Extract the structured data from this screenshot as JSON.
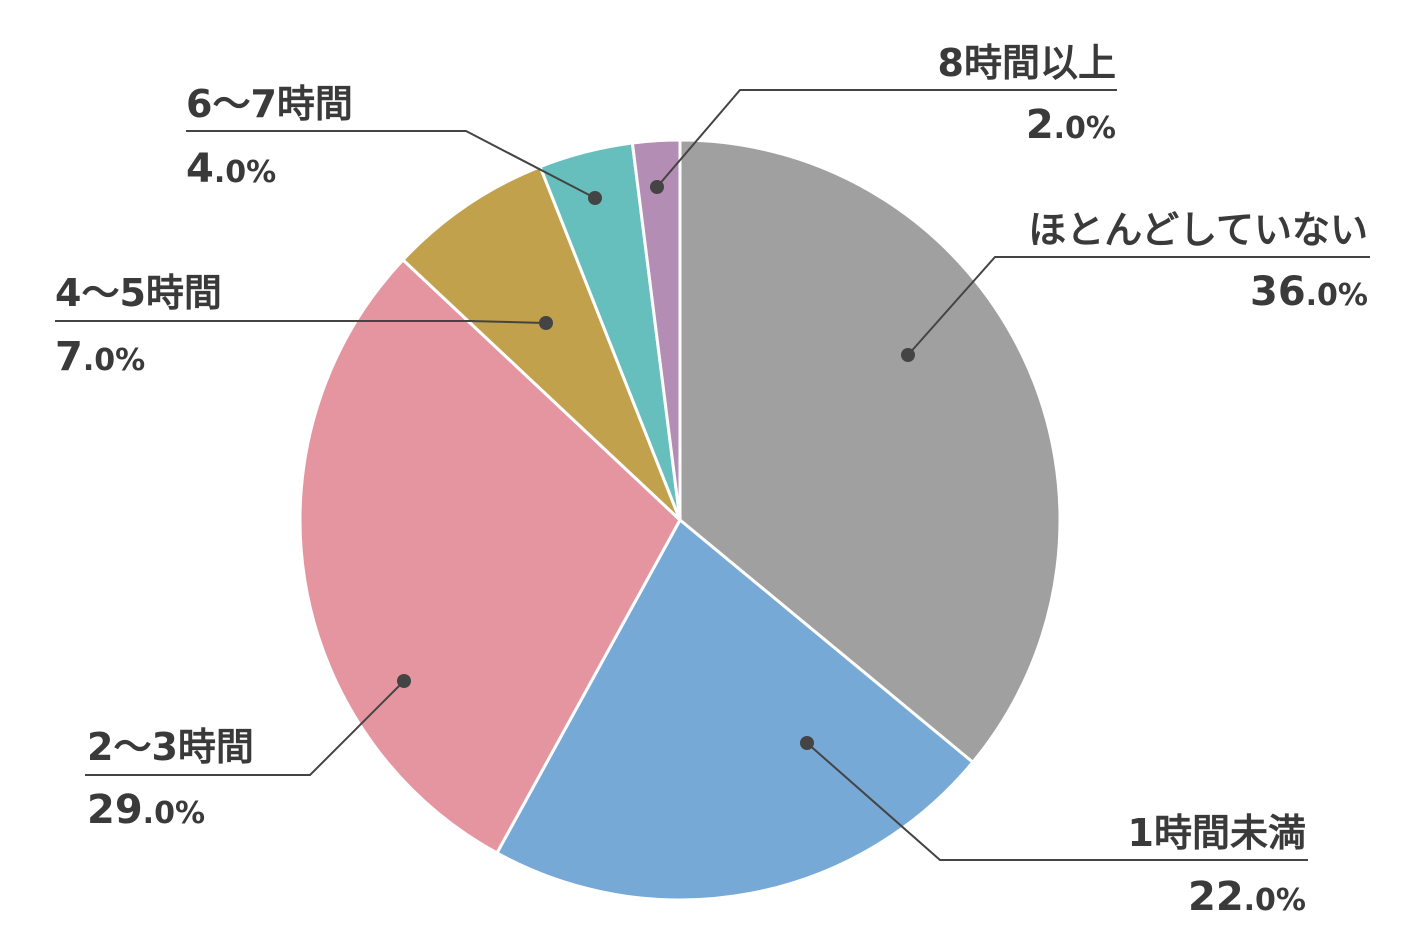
{
  "chart_data": {
    "type": "pie",
    "title": "",
    "unit": "%",
    "slices": [
      {
        "label": "ほとんどしていない",
        "value": 36.0,
        "int_text": "36",
        "dec_text": ".0%",
        "color": "#a0a0a0"
      },
      {
        "label": "1時間未満",
        "value": 22.0,
        "int_text": "22",
        "dec_text": ".0%",
        "color": "#76a9d6"
      },
      {
        "label": "2〜3時間",
        "value": 29.0,
        "int_text": "29",
        "dec_text": ".0%",
        "color": "#e5959f"
      },
      {
        "label": "4〜5時間",
        "value": 7.0,
        "int_text": "7",
        "dec_text": ".0%",
        "color": "#c2a14d"
      },
      {
        "label": "6〜7時間",
        "value": 4.0,
        "int_text": "4",
        "dec_text": ".0%",
        "color": "#67bfbd"
      },
      {
        "label": "8時間以上",
        "value": 2.0,
        "int_text": "2",
        "dec_text": ".0%",
        "color": "#b38db3"
      }
    ],
    "start_angle": "12 o'clock",
    "direction": "clockwise",
    "legend": "none",
    "leader_line_color": "#444444"
  }
}
